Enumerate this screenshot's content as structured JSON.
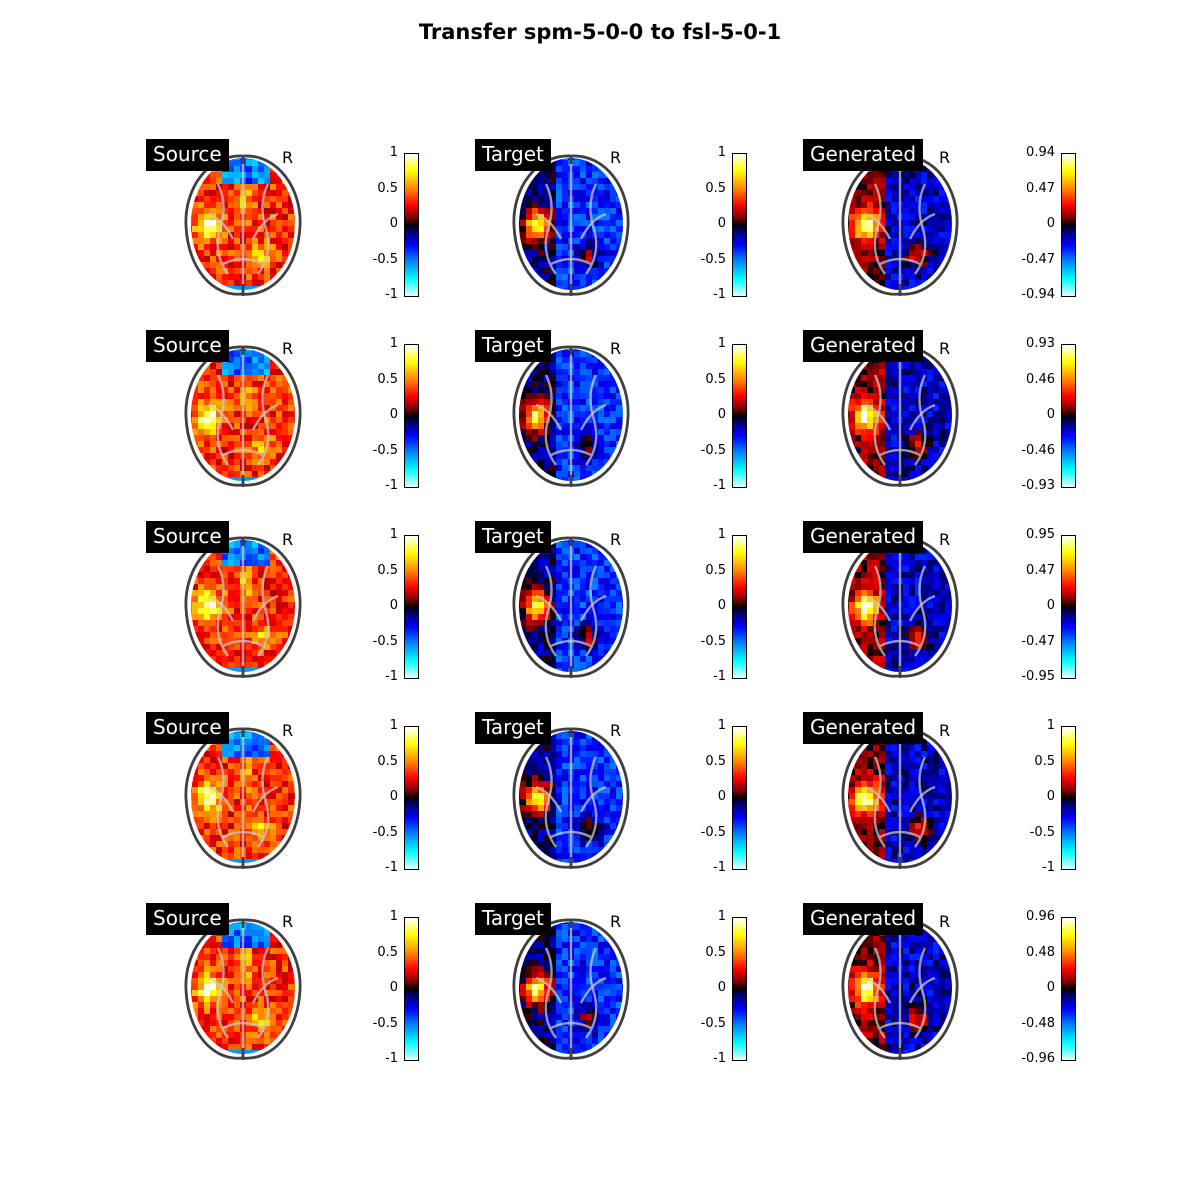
{
  "title": "Transfer spm-5-0-0 to fsl-5-0-1",
  "orientation_marker": "R",
  "rows": [
    {
      "panels": [
        {
          "label": "Source",
          "ticks": [
            "1",
            "0.5",
            "0",
            "-0.5",
            "-1"
          ]
        },
        {
          "label": "Target",
          "ticks": [
            "1",
            "0.5",
            "0",
            "-0.5",
            "-1"
          ]
        },
        {
          "label": "Generated",
          "ticks": [
            "0.94",
            "0.47",
            "0",
            "-0.47",
            "-0.94"
          ]
        }
      ]
    },
    {
      "panels": [
        {
          "label": "Source",
          "ticks": [
            "1",
            "0.5",
            "0",
            "-0.5",
            "-1"
          ]
        },
        {
          "label": "Target",
          "ticks": [
            "1",
            "0.5",
            "0",
            "-0.5",
            "-1"
          ]
        },
        {
          "label": "Generated",
          "ticks": [
            "0.93",
            "0.46",
            "0",
            "-0.46",
            "-0.93"
          ]
        }
      ]
    },
    {
      "panels": [
        {
          "label": "Source",
          "ticks": [
            "1",
            "0.5",
            "0",
            "-0.5",
            "-1"
          ]
        },
        {
          "label": "Target",
          "ticks": [
            "1",
            "0.5",
            "0",
            "-0.5",
            "-1"
          ]
        },
        {
          "label": "Generated",
          "ticks": [
            "0.95",
            "0.47",
            "0",
            "-0.47",
            "-0.95"
          ]
        }
      ]
    },
    {
      "panels": [
        {
          "label": "Source",
          "ticks": [
            "1",
            "0.5",
            "0",
            "-0.5",
            "-1"
          ]
        },
        {
          "label": "Target",
          "ticks": [
            "1",
            "0.5",
            "0",
            "-0.5",
            "-1"
          ]
        },
        {
          "label": "Generated",
          "ticks": [
            "1",
            "0.5",
            "0",
            "-0.5",
            "-1"
          ]
        }
      ]
    },
    {
      "panels": [
        {
          "label": "Source",
          "ticks": [
            "1",
            "0.5",
            "0",
            "-0.5",
            "-1"
          ]
        },
        {
          "label": "Target",
          "ticks": [
            "1",
            "0.5",
            "0",
            "-0.5",
            "-1"
          ]
        },
        {
          "label": "Generated",
          "ticks": [
            "0.96",
            "0.48",
            "0",
            "-0.48",
            "-0.96"
          ]
        }
      ]
    }
  ]
}
